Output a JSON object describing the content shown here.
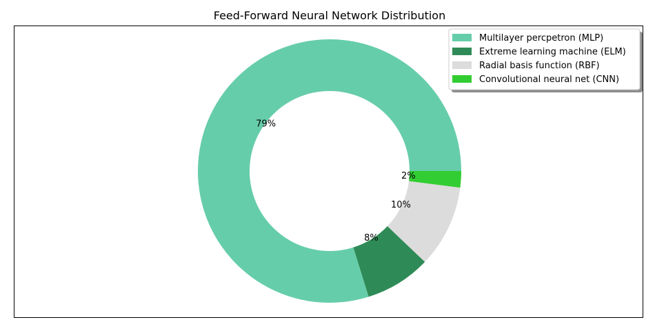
{
  "chart_data": {
    "type": "pie",
    "donut": true,
    "title": "Feed-Forward Neural Network Distribution",
    "legend_position": "top-right",
    "labels": [
      "Multilayer percpetron (MLP)",
      "Extreme learning machine (ELM)",
      "Radial basis function (RBF)",
      "Convolutional neural net (CNN)"
    ],
    "values": [
      79,
      8,
      10,
      2
    ],
    "value_labels": [
      "79%",
      "8%",
      "10%",
      "2%"
    ],
    "colors": [
      "#66cdaa",
      "#2e8b57",
      "#dcdcdc",
      "#32cd32"
    ]
  }
}
